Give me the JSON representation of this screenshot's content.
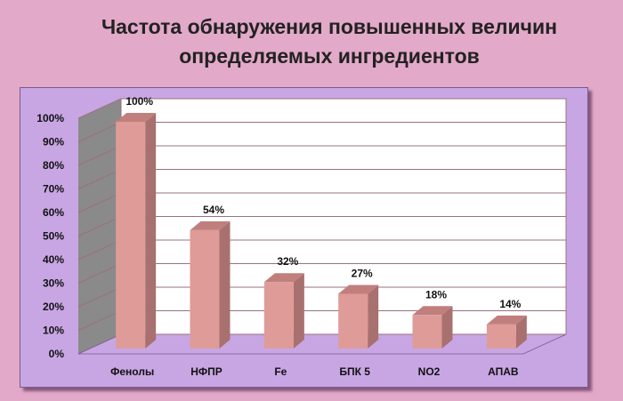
{
  "title_line1": "Частота обнаружения повышенных величин",
  "title_line2": "определяемых ингредиентов",
  "chart_data": {
    "type": "bar",
    "categories": [
      "Фенолы",
      "НФПР",
      "Fe",
      "БПК 5",
      "NO2",
      "АПАВ"
    ],
    "values": [
      100,
      54,
      32,
      27,
      18,
      14
    ],
    "labels": [
      "100%",
      "54%",
      "32%",
      "27%",
      "18%",
      "14%"
    ],
    "ylim": [
      0,
      100
    ],
    "yticks": [
      "0%",
      "10%",
      "20%",
      "30%",
      "40%",
      "50%",
      "60%",
      "70%",
      "80%",
      "90%",
      "100%"
    ],
    "grid": true,
    "legend": "none",
    "colors": {
      "bar_front": "#de9b98",
      "bar_side": "#a8706f",
      "bar_top": "#c07f7d",
      "wall": "#ffffff",
      "side_wall": "#8a8a8a",
      "floor": "#c8a6e3",
      "grid": "#9a7080"
    }
  }
}
